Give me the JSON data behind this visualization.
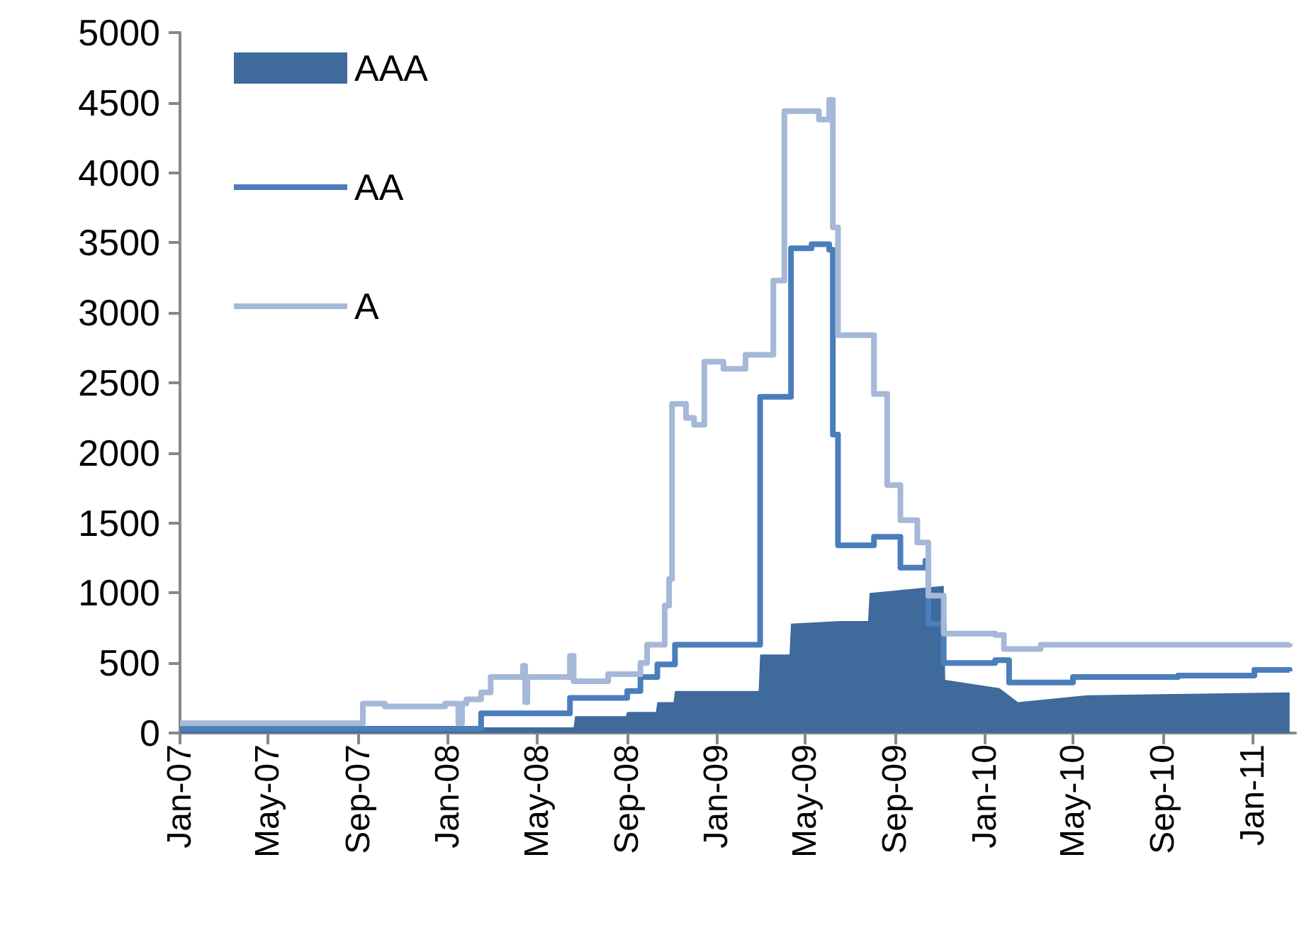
{
  "chart_data": {
    "type": "step",
    "xlim": [
      "2007-01-01",
      "2011-02-28"
    ],
    "ylim": [
      0,
      5000
    ],
    "xticks": [
      {
        "value": "2007-01-01",
        "label": "Jan-07"
      },
      {
        "value": "2007-05-01",
        "label": "May-07"
      },
      {
        "value": "2007-09-01",
        "label": "Sep-07"
      },
      {
        "value": "2008-01-01",
        "label": "Jan-08"
      },
      {
        "value": "2008-05-01",
        "label": "May-08"
      },
      {
        "value": "2008-09-01",
        "label": "Sep-08"
      },
      {
        "value": "2009-01-01",
        "label": "Jan-09"
      },
      {
        "value": "2009-05-01",
        "label": "May-09"
      },
      {
        "value": "2009-09-01",
        "label": "Sep-09"
      },
      {
        "value": "2010-01-01",
        "label": "Jan-10"
      },
      {
        "value": "2010-05-01",
        "label": "May-10"
      },
      {
        "value": "2010-09-01",
        "label": "Sep-10"
      },
      {
        "value": "2011-01-01",
        "label": "Jan-11"
      }
    ],
    "yticks": [
      0,
      500,
      1000,
      1500,
      2000,
      2500,
      3000,
      3500,
      4000,
      4500,
      5000
    ],
    "legend": "top left",
    "series": [
      {
        "name": "AAA",
        "type": "area",
        "color": "#3f6a9c",
        "x": [
          "2007-01-01",
          "2008-02-10",
          "2008-02-15",
          "2008-06-20",
          "2008-06-22",
          "2008-08-30",
          "2008-09-01",
          "2008-10-10",
          "2008-10-12",
          "2008-11-03",
          "2008-11-05",
          "2009-02-27",
          "2009-03-01",
          "2009-04-10",
          "2009-04-12",
          "2009-06-18",
          "2009-07-26",
          "2009-07-28",
          "2009-11-06",
          "2009-11-08",
          "2010-01-21",
          "2010-02-15",
          "2010-05-21",
          "2011-02-20"
        ],
        "values": [
          10,
          10,
          40,
          40,
          120,
          120,
          150,
          150,
          220,
          220,
          300,
          300,
          560,
          560,
          780,
          800,
          800,
          1000,
          1050,
          380,
          320,
          220,
          270,
          290
        ]
      },
      {
        "name": "AA",
        "color": "#4a7ebb",
        "x": [
          "2007-01-01",
          "2008-02-15",
          "2008-06-15",
          "2008-09-01",
          "2008-09-19",
          "2008-10-12",
          "2008-11-05",
          "2009-03-01",
          "2009-04-12",
          "2009-05-10",
          "2009-06-03",
          "2009-06-08",
          "2009-06-15",
          "2009-08-03",
          "2009-09-08",
          "2009-10-12",
          "2009-10-16",
          "2009-11-06",
          "2010-01-15",
          "2010-02-03",
          "2010-05-01",
          "2010-09-21",
          "2011-01-03",
          "2011-02-20"
        ],
        "values": [
          30,
          140,
          250,
          300,
          400,
          490,
          630,
          2400,
          3460,
          3490,
          3450,
          2130,
          1340,
          1400,
          1180,
          1230,
          780,
          500,
          520,
          360,
          400,
          410,
          450,
          440
        ]
      },
      {
        "name": "A",
        "color": "#a5b8d7",
        "x": [
          "2007-01-01",
          "2007-09-07",
          "2007-10-07",
          "2007-12-28",
          "2008-01-15",
          "2008-01-20",
          "2008-01-26",
          "2008-02-15",
          "2008-02-28",
          "2008-04-12",
          "2008-04-15",
          "2008-04-18",
          "2008-06-15",
          "2008-06-20",
          "2008-08-06",
          "2008-09-19",
          "2008-09-28",
          "2008-10-22",
          "2008-10-28",
          "2008-11-01",
          "2008-11-20",
          "2008-12-01",
          "2008-12-15",
          "2009-01-10",
          "2009-02-09",
          "2009-03-19",
          "2009-04-03",
          "2009-05-20",
          "2009-06-03",
          "2009-06-08",
          "2009-06-15",
          "2009-08-03",
          "2009-08-21",
          "2009-09-08",
          "2009-10-01",
          "2009-10-16",
          "2009-11-06",
          "2010-01-15",
          "2010-01-27",
          "2010-03-18",
          "2011-02-20"
        ],
        "values": [
          70,
          210,
          190,
          210,
          70,
          210,
          240,
          290,
          400,
          480,
          220,
          400,
          550,
          370,
          420,
          500,
          630,
          910,
          1100,
          2350,
          2250,
          2200,
          2650,
          2600,
          2700,
          3230,
          4440,
          4380,
          4520,
          3610,
          2840,
          2420,
          1770,
          1520,
          1360,
          980,
          710,
          700,
          600,
          630,
          640
        ]
      }
    ]
  }
}
